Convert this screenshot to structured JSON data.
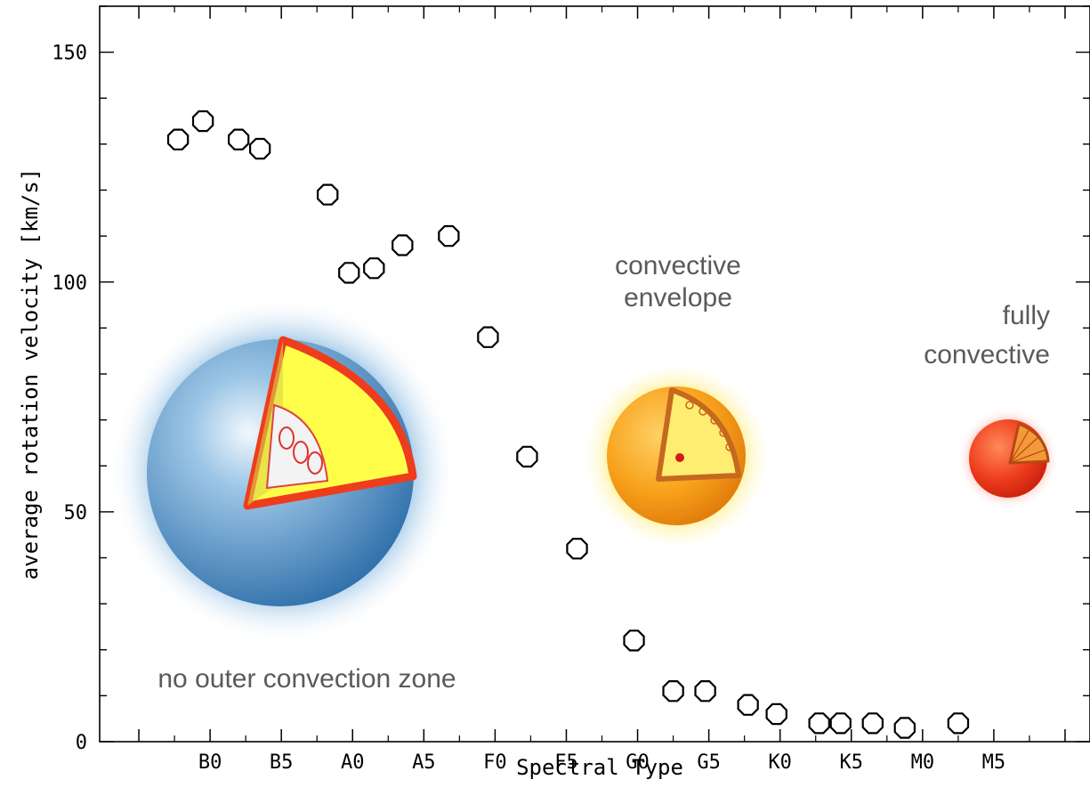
{
  "chart_data": {
    "type": "scatter",
    "title": "",
    "xlabel": "Spectral Type",
    "ylabel": "average rotation velocity [km/s]",
    "x_categories": [
      "B0",
      "B5",
      "A0",
      "A5",
      "F0",
      "F5",
      "G0",
      "G5",
      "K0",
      "K5",
      "M0",
      "M5"
    ],
    "x_range_index": [
      -1.55,
      12.35
    ],
    "ylim": [
      0,
      160
    ],
    "y_ticks": [
      0,
      50,
      100,
      150
    ],
    "grid": false,
    "series": [
      {
        "marker": "open-octagon",
        "points": [
          {
            "x": -0.45,
            "y": 131
          },
          {
            "x": -0.1,
            "y": 135
          },
          {
            "x": 0.4,
            "y": 131
          },
          {
            "x": 0.7,
            "y": 129
          },
          {
            "x": 1.65,
            "y": 119
          },
          {
            "x": 1.95,
            "y": 102
          },
          {
            "x": 2.3,
            "y": 103
          },
          {
            "x": 2.7,
            "y": 108
          },
          {
            "x": 3.35,
            "y": 110
          },
          {
            "x": 3.9,
            "y": 88
          },
          {
            "x": 4.45,
            "y": 62
          },
          {
            "x": 5.15,
            "y": 42
          },
          {
            "x": 5.95,
            "y": 22
          },
          {
            "x": 6.5,
            "y": 11
          },
          {
            "x": 6.95,
            "y": 11
          },
          {
            "x": 7.55,
            "y": 8
          },
          {
            "x": 7.95,
            "y": 6
          },
          {
            "x": 8.55,
            "y": 4
          },
          {
            "x": 8.85,
            "y": 4
          },
          {
            "x": 9.3,
            "y": 4
          },
          {
            "x": 9.75,
            "y": 3
          },
          {
            "x": 10.5,
            "y": 4
          }
        ]
      }
    ],
    "annotations": [
      {
        "key": "hot",
        "lines": [
          "no outer convection zone"
        ]
      },
      {
        "key": "sun",
        "lines": [
          "convective",
          "envelope"
        ]
      },
      {
        "key": "red",
        "lines": [
          "fully",
          "convective"
        ]
      }
    ],
    "star_colors": {
      "hot_shell": "#3f86c2",
      "hot_core": "#ffff4a",
      "hot_rim": "#ee3d1c",
      "sun_body": "#f7a11a",
      "sun_glow": "#ffe64d",
      "red_body": "#e8341c"
    }
  }
}
